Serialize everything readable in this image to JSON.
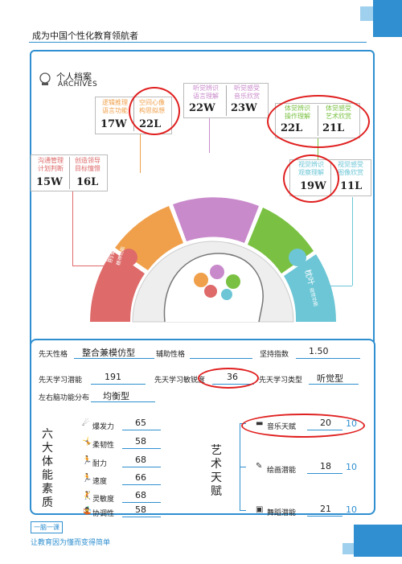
{
  "header": {
    "title": "成为中国个性化教育领航者"
  },
  "archives": {
    "title_cn": "个人档案",
    "title_en": "ARCHIVES"
  },
  "cards": {
    "c1": {
      "label_a": "逻辑推理\n语言功能",
      "label_b": "空间心像\n构思拟想",
      "value_a": "17W",
      "value_b": "22L"
    },
    "c2": {
      "label_a": "沟通管理\n计划判断",
      "label_b": "创造领导\n目标憧憬",
      "value_a": "15W",
      "value_b": "16L"
    },
    "c3": {
      "label_a": "听觉辨识\n语言理解",
      "label_b": "听觉感受\n音乐欣赏",
      "value_a": "22W",
      "value_b": "23W"
    },
    "c4": {
      "label_a": "体觉辨识\n操作理解",
      "label_b": "体觉感受\n艺术欣赏",
      "value_a": "22L",
      "value_b": "21L"
    },
    "c5": {
      "label_a": "视觉辨识\n观察理解",
      "label_b": "视觉感受\n图像欣赏",
      "value_a": "19W",
      "value_b": "11L"
    }
  },
  "lobes": {
    "prefrontal": {
      "name": "前额叶",
      "sub": "精神功能"
    },
    "frontal": {
      "name": "后额叶",
      "sub": "思维功能"
    },
    "temporal": {
      "name": "颞叶",
      "sub": "听觉功能"
    },
    "parietal": {
      "name": "顶叶",
      "sub": "体觉功能"
    },
    "occipital": {
      "name": "枕叶",
      "sub": "视觉功能"
    }
  },
  "profile": {
    "innate_personality_label": "先天性格",
    "innate_personality": "整合兼模仿型",
    "aux_personality_label": "辅助性格",
    "aux_personality": "",
    "persistence_label": "坚持指数",
    "persistence": "1.50",
    "potential_label": "先天学习潜能",
    "potential": "191",
    "sensitivity_label": "先天学习敏锐度",
    "sensitivity": "36",
    "learn_type_label": "先天学习类型",
    "learn_type": "听觉型",
    "brain_dist_label": "左右脑功能分布",
    "brain_dist": "均衡型"
  },
  "physical": {
    "title": "六大体能素质",
    "items": [
      {
        "label": "爆发力",
        "value": "65"
      },
      {
        "label": "柔韧性",
        "value": "58"
      },
      {
        "label": "耐力",
        "value": "68"
      },
      {
        "label": "速度",
        "value": "66"
      },
      {
        "label": "灵敏度",
        "value": "68"
      },
      {
        "label": "协调性",
        "value": "58"
      }
    ]
  },
  "art": {
    "title": "艺术天赋",
    "items": [
      {
        "label": "音乐天赋",
        "value": "20",
        "max": "10"
      },
      {
        "label": "绘画潜能",
        "value": "18",
        "max": "10"
      },
      {
        "label": "舞蹈潜能",
        "value": "21",
        "max": "10"
      }
    ]
  },
  "footer": {
    "logo": "一脑一课",
    "slogan": "让教育因为懂而变得简单"
  },
  "colors": {
    "accent": "#2f8fd0",
    "red": "#e02020",
    "orange": "#f0a04b",
    "pink": "#de6a6a",
    "purple": "#c98acb",
    "green": "#7ac143",
    "teal": "#6cc6d6"
  }
}
